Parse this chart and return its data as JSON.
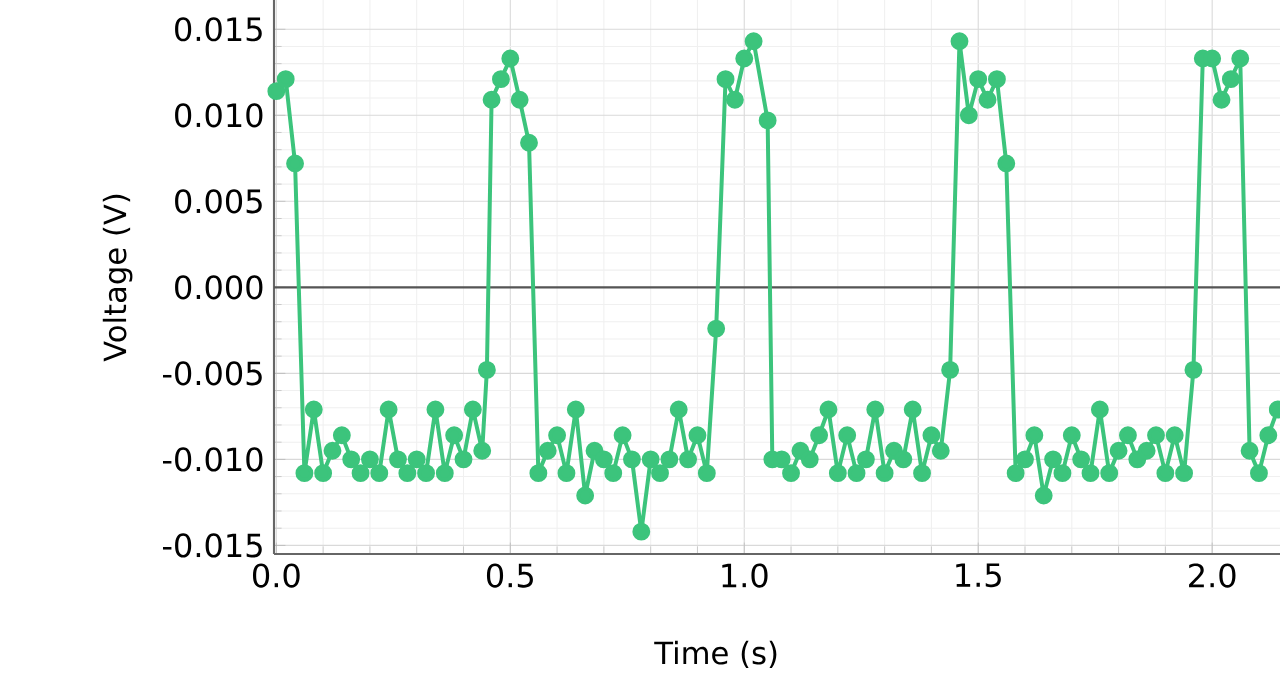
{
  "chart_data": {
    "type": "line",
    "xlabel": "Time (s)",
    "ylabel": "Voltage (V)",
    "x": [
      0.0,
      0.02,
      0.04,
      0.06,
      0.08,
      0.1,
      0.12,
      0.14,
      0.16,
      0.18,
      0.2,
      0.22,
      0.24,
      0.26,
      0.28,
      0.3,
      0.32,
      0.34,
      0.36,
      0.38,
      0.4,
      0.42,
      0.44,
      0.45,
      0.46,
      0.48,
      0.5,
      0.52,
      0.54,
      0.56,
      0.58,
      0.6,
      0.62,
      0.64,
      0.66,
      0.68,
      0.7,
      0.72,
      0.74,
      0.76,
      0.78,
      0.8,
      0.82,
      0.84,
      0.86,
      0.88,
      0.9,
      0.92,
      0.94,
      0.96,
      0.98,
      1.0,
      1.02,
      1.05,
      1.06,
      1.08,
      1.1,
      1.12,
      1.14,
      1.16,
      1.18,
      1.2,
      1.22,
      1.24,
      1.26,
      1.28,
      1.3,
      1.32,
      1.34,
      1.36,
      1.38,
      1.4,
      1.42,
      1.44,
      1.46,
      1.48,
      1.5,
      1.52,
      1.54,
      1.56,
      1.58,
      1.6,
      1.62,
      1.64,
      1.66,
      1.68,
      1.7,
      1.72,
      1.74,
      1.76,
      1.78,
      1.8,
      1.82,
      1.84,
      1.86,
      1.88,
      1.9,
      1.92,
      1.94,
      1.96,
      1.98,
      2.0,
      2.02,
      2.04,
      2.06,
      2.08,
      2.1,
      2.12,
      2.14
    ],
    "series": [
      {
        "color": "#3cc47c",
        "values": [
          0.0114,
          0.0121,
          0.0072,
          -0.0108,
          -0.0071,
          -0.0108,
          -0.0095,
          -0.0086,
          -0.01,
          -0.0108,
          -0.01,
          -0.0108,
          -0.0071,
          -0.01,
          -0.0108,
          -0.01,
          -0.0108,
          -0.0071,
          -0.0108,
          -0.0086,
          -0.01,
          -0.0071,
          -0.0095,
          -0.0048,
          0.0109,
          0.0121,
          0.0133,
          0.0109,
          0.0084,
          -0.0108,
          -0.0095,
          -0.0086,
          -0.0108,
          -0.0071,
          -0.0121,
          -0.0095,
          -0.01,
          -0.0108,
          -0.0086,
          -0.01,
          -0.0142,
          -0.01,
          -0.0108,
          -0.01,
          -0.0071,
          -0.01,
          -0.0086,
          -0.0108,
          -0.0024,
          0.0121,
          0.0109,
          0.0133,
          0.0143,
          0.0097,
          -0.01,
          -0.01,
          -0.0108,
          -0.0095,
          -0.01,
          -0.0086,
          -0.0071,
          -0.0108,
          -0.0086,
          -0.0108,
          -0.01,
          -0.0071,
          -0.0108,
          -0.0095,
          -0.01,
          -0.0071,
          -0.0108,
          -0.0086,
          -0.0095,
          -0.0048,
          0.0143,
          0.01,
          0.0121,
          0.0109,
          0.0121,
          0.0072,
          -0.0108,
          -0.01,
          -0.0086,
          -0.0121,
          -0.01,
          -0.0108,
          -0.0086,
          -0.01,
          -0.0108,
          -0.0071,
          -0.0108,
          -0.0095,
          -0.0086,
          -0.01,
          -0.0095,
          -0.0086,
          -0.0108,
          -0.0086,
          -0.0108,
          -0.0048,
          0.0133,
          0.0133,
          0.0109,
          0.0121,
          0.0133,
          -0.0095,
          -0.0108,
          -0.0086,
          -0.0071
        ]
      }
    ],
    "xlim": [
      -0.005,
      2.145
    ],
    "ylim": [
      -0.0155,
      0.0167
    ],
    "xticks": [
      {
        "value": 0,
        "label": "0.0"
      },
      {
        "value": 0.5,
        "label": "0.5"
      },
      {
        "value": 1,
        "label": "1.0"
      },
      {
        "value": 1.5,
        "label": "1.5"
      },
      {
        "value": 2,
        "label": "2.0"
      }
    ],
    "yticks": [
      {
        "value": -0.015,
        "label": "-0.015"
      },
      {
        "value": -0.01,
        "label": "-0.010"
      },
      {
        "value": -0.005,
        "label": "-0.005"
      },
      {
        "value": 0,
        "label": "0.000"
      },
      {
        "value": 0.005,
        "label": "0.005"
      },
      {
        "value": 0.01,
        "label": "0.010"
      },
      {
        "value": 0.015,
        "label": "0.015"
      }
    ],
    "ref_lines": [
      {
        "axis": "y",
        "value": 0,
        "color": "#555555"
      }
    ],
    "grid": true,
    "marker": "circle",
    "line_style": "solid"
  }
}
